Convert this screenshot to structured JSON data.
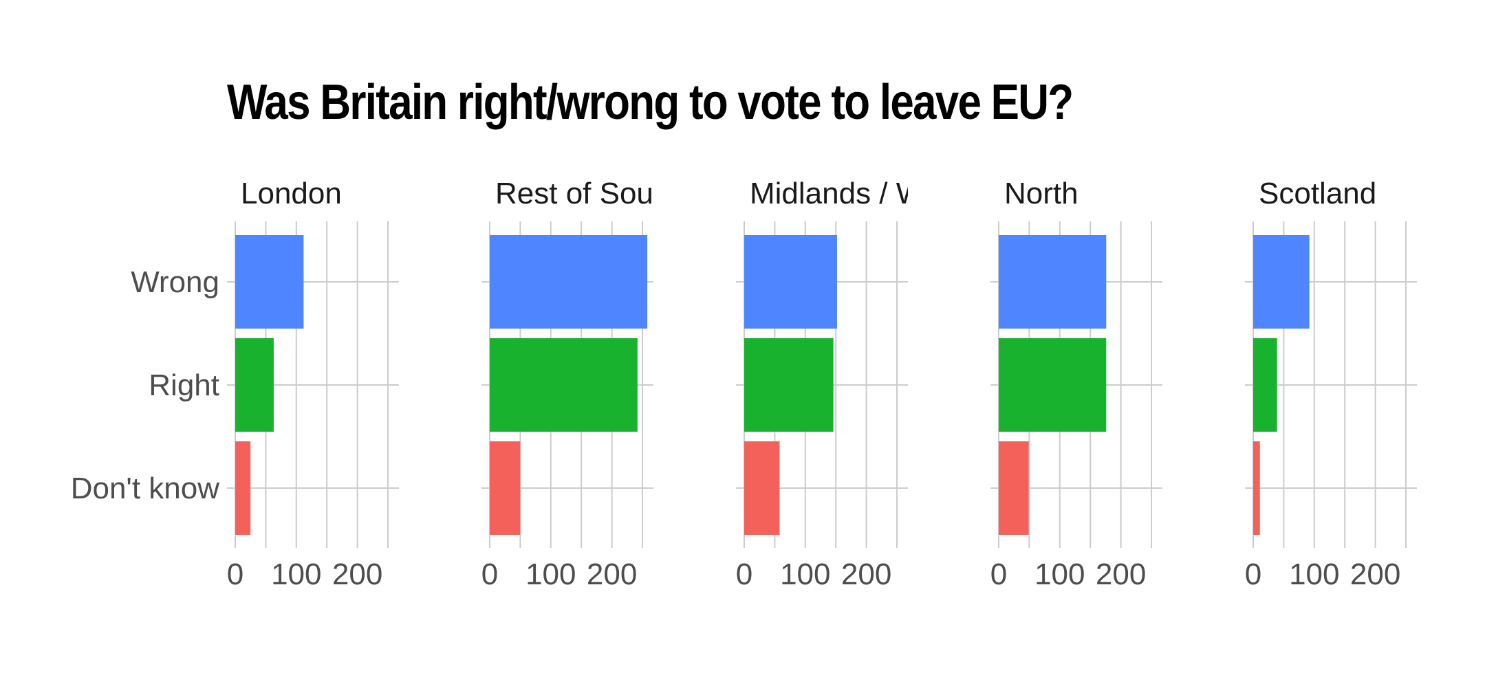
{
  "chart_data": {
    "type": "bar",
    "orientation": "horizontal",
    "title": "Was Britain right/wrong to vote to leave EU?",
    "xlabel": "",
    "ylabel": "",
    "categories": [
      "Wrong",
      "Right",
      "Don't know"
    ],
    "colors": {
      "Wrong": "#4f86ff",
      "Right": "#18b22e",
      "Don't know": "#f4615b"
    },
    "xlim": [
      0,
      270
    ],
    "xticks": [
      0,
      100,
      200
    ],
    "grid": true,
    "legend": "none",
    "facets": [
      {
        "label": "London",
        "values": {
          "Wrong": 112,
          "Right": 63,
          "Don't know": 25
        }
      },
      {
        "label": "Rest of South",
        "values": {
          "Wrong": 258,
          "Right": 242,
          "Don't know": 50
        }
      },
      {
        "label": "Midlands / Wales",
        "values": {
          "Wrong": 152,
          "Right": 146,
          "Don't know": 58
        }
      },
      {
        "label": "North",
        "values": {
          "Wrong": 176,
          "Right": 176,
          "Don't know": 49
        }
      },
      {
        "label": "Scotland",
        "values": {
          "Wrong": 92,
          "Right": 39,
          "Don't know": 11
        }
      }
    ]
  }
}
